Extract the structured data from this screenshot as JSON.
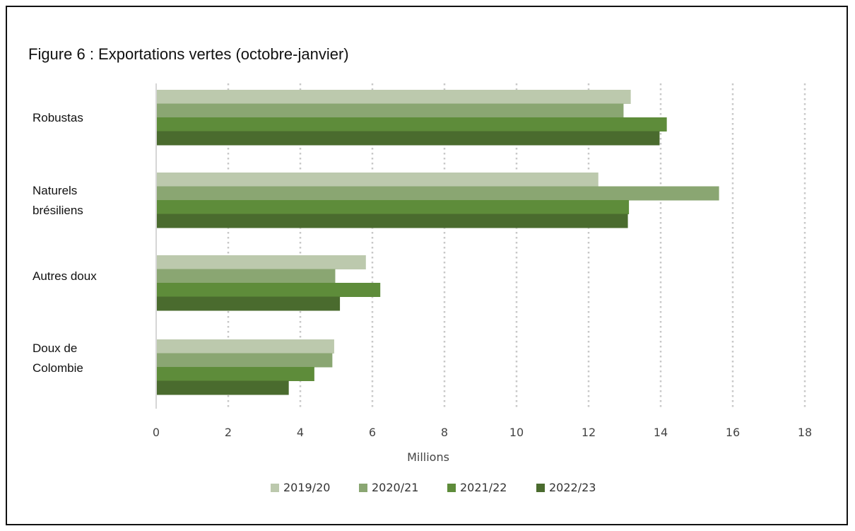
{
  "chart_data": {
    "type": "bar",
    "orientation": "horizontal",
    "title": "Figure 6 : Exportations vertes (octobre-janvier)",
    "xlabel": "Millions",
    "ylabel": "",
    "xlim": [
      0,
      18
    ],
    "ticks": [
      "0",
      "2",
      "4",
      "6",
      "8",
      "10",
      "12",
      "14",
      "16",
      "18"
    ],
    "grid": "vertical dotted",
    "legend_position": "bottom",
    "categories": [
      "Robustas",
      "Naturels\nbrésiliens",
      "Autres doux",
      "Doux de\nColombie"
    ],
    "series": [
      {
        "name": "2019/20",
        "color": "#bcc9ad",
        "values": [
          13.15,
          12.25,
          5.8,
          4.92
        ]
      },
      {
        "name": "2020/21",
        "color": "#8aa672",
        "values": [
          12.95,
          15.6,
          4.95,
          4.87
        ]
      },
      {
        "name": "2021/22",
        "color": "#5e8c3a",
        "values": [
          14.15,
          13.1,
          6.2,
          4.37
        ]
      },
      {
        "name": "2022/23",
        "color": "#4a6b2e",
        "values": [
          13.95,
          13.07,
          5.08,
          3.66
        ]
      }
    ]
  }
}
